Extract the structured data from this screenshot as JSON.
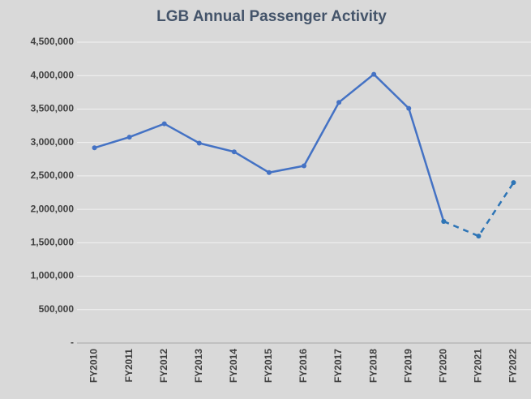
{
  "chart_data": {
    "type": "line",
    "title": "LGB Annual Passenger Activity",
    "categories": [
      "FY2010",
      "FY2011",
      "FY2012",
      "FY2013",
      "FY2014",
      "FY2015",
      "FY2016",
      "FY2017",
      "FY2018",
      "FY2019",
      "FY2020",
      "FY2021",
      "FY2022"
    ],
    "series": [
      {
        "color": "#4472c4",
        "dashed": false,
        "values": [
          2920000,
          3080000,
          3280000,
          2990000,
          2860000,
          2550000,
          2650000,
          3600000,
          4020000,
          3510000,
          1820000,
          null,
          null
        ]
      },
      {
        "color": "#2e75b6",
        "dashed": true,
        "values": [
          null,
          null,
          null,
          null,
          null,
          null,
          null,
          null,
          null,
          null,
          1820000,
          1600000,
          2400000
        ]
      }
    ],
    "ylim": [
      0,
      4500000
    ],
    "yticks": [
      {
        "value": 0,
        "label": "-"
      },
      {
        "value": 500000,
        "label": "500,000"
      },
      {
        "value": 1000000,
        "label": "1,000,000"
      },
      {
        "value": 1500000,
        "label": "1,500,000"
      },
      {
        "value": 2000000,
        "label": "2,000,000"
      },
      {
        "value": 2500000,
        "label": "2,500,000"
      },
      {
        "value": 3000000,
        "label": "3,000,000"
      },
      {
        "value": 3500000,
        "label": "3,500,000"
      },
      {
        "value": 4000000,
        "label": "4,000,000"
      },
      {
        "value": 4500000,
        "label": "4,500,000"
      }
    ],
    "grid": true
  }
}
